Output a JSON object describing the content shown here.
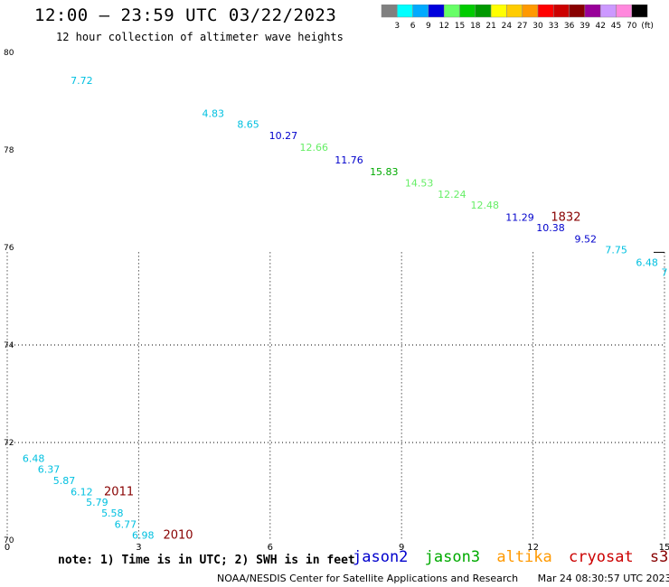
{
  "header": {
    "title": "12:00 – 23:59 UTC 03/22/2023",
    "subtitle": "12 hour collection of altimeter wave heights"
  },
  "colorbar": {
    "colors": [
      "#808080",
      "#00ffff",
      "#00aaff",
      "#0000dd",
      "#66ff66",
      "#00cc00",
      "#009900",
      "#ffff00",
      "#ffcc00",
      "#ff9900",
      "#ff0000",
      "#cc0000",
      "#880000",
      "#990099",
      "#cc99ff",
      "#ff88dd",
      "#000000"
    ],
    "labels": [
      "3",
      "6",
      "9",
      "12",
      "15",
      "18",
      "21",
      "24",
      "27",
      "30",
      "33",
      "36",
      "39",
      "42",
      "45",
      "70",
      "(ft)"
    ]
  },
  "chart_data": {
    "type": "scatter",
    "title": "12:00 – 23:59 UTC 03/22/2023",
    "subtitle": "12 hour collection of altimeter wave heights",
    "xlabel": "",
    "ylabel": "",
    "xlim": [
      0,
      15
    ],
    "ylim": [
      70,
      80
    ],
    "xticks": [
      "0",
      "3",
      "6",
      "9",
      "12",
      "15"
    ],
    "yticks": [
      "70",
      "72",
      "74",
      "76",
      "78",
      "80"
    ],
    "grid": true,
    "labels": [
      {
        "x": 1.7,
        "y": 79.35,
        "text": "7.72",
        "color": "#00c0e0"
      },
      {
        "x": 4.7,
        "y": 78.68,
        "text": "4.83",
        "color": "#00c0e0"
      },
      {
        "x": 5.5,
        "y": 78.45,
        "text": "8.65",
        "color": "#00c0e0"
      },
      {
        "x": 6.3,
        "y": 78.22,
        "text": "10.27",
        "color": "#0000cc"
      },
      {
        "x": 7.0,
        "y": 77.98,
        "text": "12.66",
        "color": "#66ee66"
      },
      {
        "x": 7.8,
        "y": 77.72,
        "text": "11.76",
        "color": "#0000cc"
      },
      {
        "x": 8.6,
        "y": 77.48,
        "text": "15.83",
        "color": "#00aa00"
      },
      {
        "x": 9.4,
        "y": 77.25,
        "text": "14.53",
        "color": "#66ee66"
      },
      {
        "x": 10.15,
        "y": 77.02,
        "text": "12.24",
        "color": "#66ee66"
      },
      {
        "x": 10.9,
        "y": 76.8,
        "text": "12.48",
        "color": "#66ee66"
      },
      {
        "x": 11.7,
        "y": 76.55,
        "text": "11.29",
        "color": "#0000cc"
      },
      {
        "x": 12.4,
        "y": 76.33,
        "text": "10.38",
        "color": "#0000cc"
      },
      {
        "x": 13.2,
        "y": 76.1,
        "text": "9.52",
        "color": "#0000cc"
      },
      {
        "x": 13.9,
        "y": 75.88,
        "text": "7.75",
        "color": "#00c0e0"
      },
      {
        "x": 14.6,
        "y": 75.62,
        "text": "6.48",
        "color": "#00c0e0"
      },
      {
        "x": 15.0,
        "y": 75.42,
        "text": "7",
        "color": "#00c0e0"
      },
      {
        "x": 0.6,
        "y": 71.6,
        "text": "6.48",
        "color": "#00c0e0"
      },
      {
        "x": 0.95,
        "y": 71.38,
        "text": "6.37",
        "color": "#00c0e0"
      },
      {
        "x": 1.3,
        "y": 71.15,
        "text": "5.87",
        "color": "#00c0e0"
      },
      {
        "x": 1.7,
        "y": 70.92,
        "text": "6.12",
        "color": "#00c0e0"
      },
      {
        "x": 2.05,
        "y": 70.7,
        "text": "5.79",
        "color": "#00c0e0"
      },
      {
        "x": 2.4,
        "y": 70.48,
        "text": "5.58",
        "color": "#00c0e0"
      },
      {
        "x": 2.7,
        "y": 70.25,
        "text": "6.77",
        "color": "#00c0e0"
      },
      {
        "x": 3.1,
        "y": 70.03,
        "text": "6.98",
        "color": "#00c0e0"
      }
    ],
    "pass_times": [
      {
        "x": 12.75,
        "y": 76.55,
        "text": "1832"
      },
      {
        "x": 2.55,
        "y": 70.92,
        "text": "2011"
      },
      {
        "x": 3.9,
        "y": 70.03,
        "text": "2010"
      }
    ]
  },
  "note": "note: 1) Time is in UTC; 2) SWH is in feet",
  "satellites": [
    {
      "name": "jason2",
      "color": "#0000cc"
    },
    {
      "name": "jason3",
      "color": "#00aa00"
    },
    {
      "name": "altika",
      "color": "#ff9900"
    },
    {
      "name": "cryosat",
      "color": "#cc0000"
    },
    {
      "name": "s3a",
      "color": "#880000"
    }
  ],
  "footer": {
    "credit": "NOAA/NESDIS Center for Satellite Applications and Research",
    "timestamp": "Mar 24 08:30:57 UTC 2023"
  }
}
